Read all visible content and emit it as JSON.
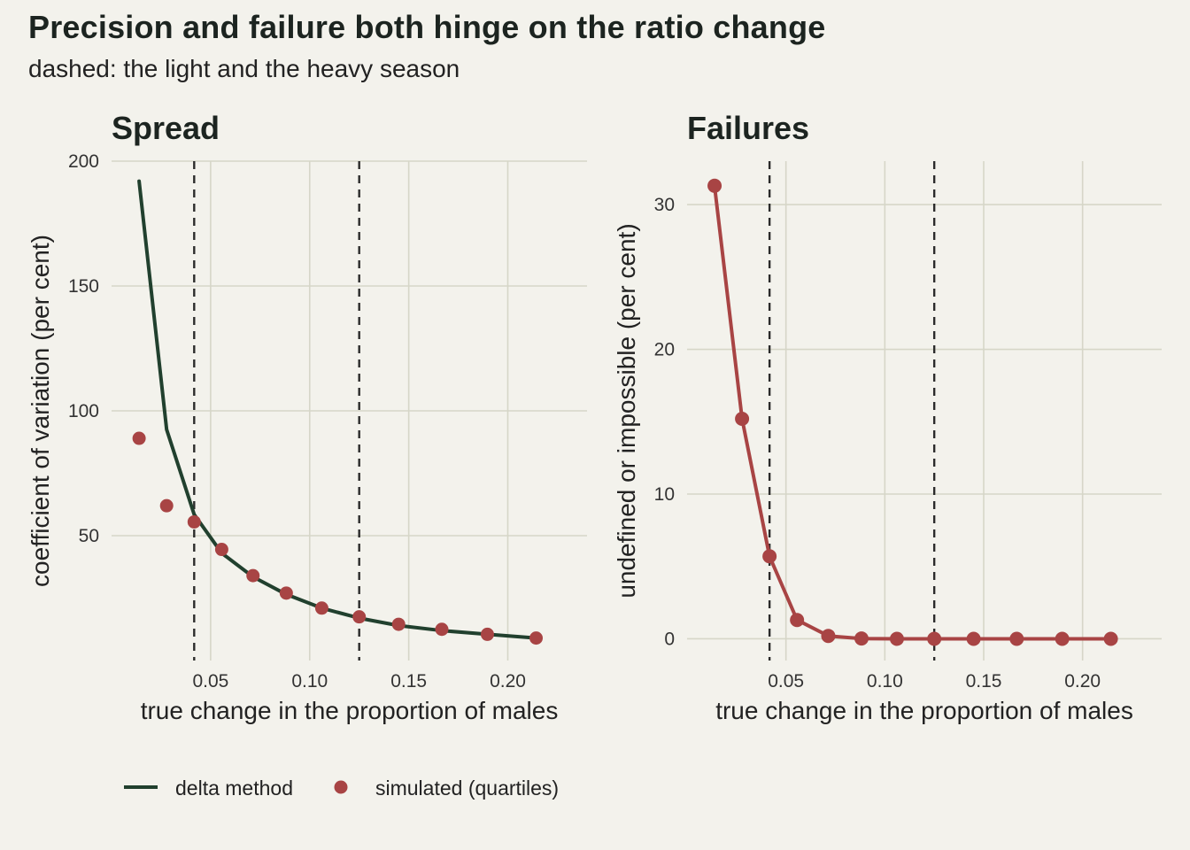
{
  "title": "Precision and failure both hinge on the ratio change",
  "subtitle": "dashed: the light and the heavy season",
  "colors": {
    "delta": "#21402e",
    "simulated": "#a84444",
    "background": "#f3f2ec"
  },
  "legend": {
    "position": "bottom",
    "items": [
      {
        "label": "delta method",
        "kind": "line"
      },
      {
        "label": "simulated (quartiles)",
        "kind": "point"
      }
    ]
  },
  "chart_data": [
    {
      "type": "line",
      "panel_title": "Spread",
      "xlabel": "true change in the proportion of males",
      "ylabel": "coefficient of variation (per cent)",
      "xlim": [
        0.0,
        0.24
      ],
      "ylim": [
        0,
        200
      ],
      "x_ticks": [
        "0.05",
        "0.10",
        "0.15",
        "0.20"
      ],
      "x_tick_values": [
        0.05,
        0.1,
        0.15,
        0.2
      ],
      "y_ticks": [
        "50",
        "100",
        "150",
        "200"
      ],
      "y_tick_values": [
        50,
        100,
        150,
        200
      ],
      "vlines": [
        0.0417,
        0.125
      ],
      "grid": true,
      "series": [
        {
          "name": "delta method",
          "kind": "line",
          "x": [
            0.0139,
            0.0278,
            0.0417,
            0.0556,
            0.0714,
            0.0882,
            0.1061,
            0.125,
            0.1449,
            0.1667,
            0.1897,
            0.2143
          ],
          "y": [
            192,
            92.5,
            58.5,
            43,
            33.5,
            26.5,
            21,
            17,
            14,
            12,
            10.5,
            9
          ]
        },
        {
          "name": "simulated (quartiles)",
          "kind": "point",
          "x": [
            0.0139,
            0.0278,
            0.0417,
            0.0556,
            0.0714,
            0.0882,
            0.1061,
            0.125,
            0.1449,
            0.1667,
            0.1897,
            0.2143
          ],
          "y": [
            89,
            62,
            55.5,
            44.5,
            34,
            27,
            21,
            17.5,
            14.5,
            12.5,
            10.5,
            9
          ]
        }
      ]
    },
    {
      "type": "line",
      "panel_title": "Failures",
      "xlabel": "true change in the proportion of males",
      "ylabel": "undefined or impossible (per cent)",
      "xlim": [
        0.0,
        0.24
      ],
      "ylim": [
        -1.5,
        33
      ],
      "x_ticks": [
        "0.05",
        "0.10",
        "0.15",
        "0.20"
      ],
      "x_tick_values": [
        0.05,
        0.1,
        0.15,
        0.2
      ],
      "y_ticks": [
        "0",
        "10",
        "20",
        "30"
      ],
      "y_tick_values": [
        0,
        10,
        20,
        30
      ],
      "vlines": [
        0.0417,
        0.125
      ],
      "grid": true,
      "series": [
        {
          "name": "simulated (quartiles)",
          "kind": "line+point",
          "x": [
            0.0139,
            0.0278,
            0.0417,
            0.0556,
            0.0714,
            0.0882,
            0.1061,
            0.125,
            0.1449,
            0.1667,
            0.1897,
            0.2143
          ],
          "y": [
            31.3,
            15.2,
            5.7,
            1.3,
            0.2,
            0.02,
            0,
            0,
            0,
            0,
            0,
            0
          ]
        }
      ]
    }
  ]
}
